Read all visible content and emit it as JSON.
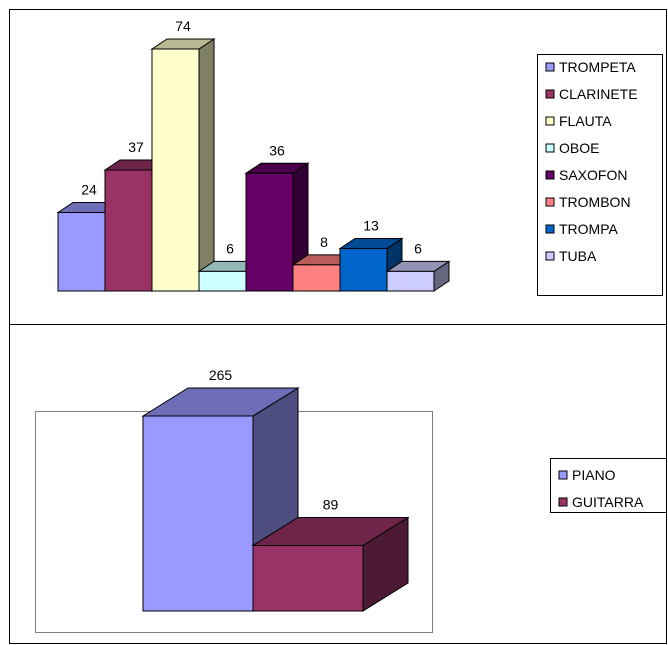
{
  "chart_data": [
    {
      "type": "bar",
      "categories": [
        "TROMPETA",
        "CLARINETE",
        "FLAUTA",
        "OBOE",
        "SAXOFON",
        "TROMBON",
        "TROMPA",
        "TUBA"
      ],
      "values": [
        24,
        37,
        74,
        6,
        36,
        8,
        13,
        6
      ],
      "data_labels": [
        "24",
        "37",
        "74",
        "6",
        "36",
        "8",
        "13",
        "6"
      ],
      "colors": [
        "#9999ff",
        "#993366",
        "#ffffcc",
        "#ccffff",
        "#660066",
        "#ff8080",
        "#0066cc",
        "#ccccff"
      ],
      "legend": "right",
      "grid": false,
      "ylim": [
        0,
        74
      ],
      "style": "3d-column"
    },
    {
      "type": "bar",
      "categories": [
        "PIANO",
        "GUITARRA"
      ],
      "values": [
        265,
        89
      ],
      "data_labels": [
        "265",
        "89"
      ],
      "colors": [
        "#9999ff",
        "#993366"
      ],
      "legend": "right",
      "grid": false,
      "ylim": [
        0,
        265
      ],
      "style": "3d-column"
    }
  ]
}
